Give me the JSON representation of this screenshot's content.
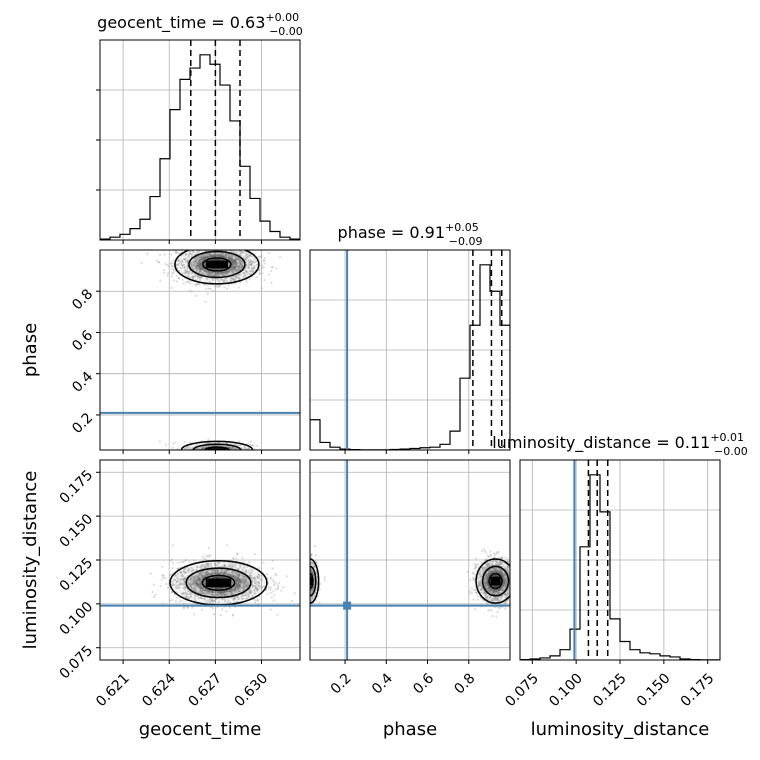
{
  "chart_data": {
    "type": "corner",
    "params": [
      {
        "name": "geocent_time",
        "axis_label": "geocent_time",
        "range": [
          0.6195,
          0.6325
        ],
        "ticks": [
          0.621,
          0.624,
          0.627,
          0.63
        ],
        "tick_labels": [
          "0.621",
          "0.624",
          "0.627",
          "0.630"
        ],
        "title_main": "geocent_time = 0.63",
        "title_sup": "+0.00",
        "title_sub": "−0.00",
        "quantiles": [
          0.6254,
          0.627,
          0.6286
        ],
        "injection": null
      },
      {
        "name": "phase",
        "axis_label": "phase",
        "range": [
          0.03,
          1.0
        ],
        "ticks": [
          0.2,
          0.4,
          0.6,
          0.8
        ],
        "tick_labels": [
          "0.2",
          "0.4",
          "0.6",
          "0.8"
        ],
        "title_main": "phase = 0.91",
        "title_sup": "+0.05",
        "title_sub": "−0.09",
        "quantiles": [
          0.82,
          0.91,
          0.96
        ],
        "injection": 0.21
      },
      {
        "name": "luminosity_distance",
        "axis_label": "luminosity_distance",
        "range": [
          0.068,
          0.182
        ],
        "ticks": [
          0.075,
          0.1,
          0.125,
          0.15,
          0.175
        ],
        "tick_labels": [
          "0.075",
          "0.100",
          "0.125",
          "0.150",
          "0.175"
        ],
        "title_main": "luminosity_distance = 0.11",
        "title_sup": "+0.01",
        "title_sub": "−0.00",
        "quantiles": [
          0.107,
          0.112,
          0.118
        ],
        "injection": 0.099
      }
    ],
    "histograms": {
      "geocent_time": {
        "bins": [
          0.6195,
          0.62015,
          0.6208,
          0.62145,
          0.6221,
          0.62275,
          0.6234,
          0.62405,
          0.6247,
          0.62535,
          0.626,
          0.62665,
          0.6273,
          0.62795,
          0.6286,
          0.62925,
          0.6299,
          0.63055,
          0.6312,
          0.63185,
          0.6325
        ],
        "values": [
          0.5,
          1.5,
          3,
          6,
          11,
          23,
          43,
          69,
          85,
          91,
          98,
          93,
          82,
          63,
          39,
          22,
          10,
          4.5,
          1.5,
          0.5
        ]
      },
      "phase": {
        "bins": [
          0.03,
          0.0785,
          0.127,
          0.1755,
          0.224,
          0.2725,
          0.321,
          0.3695,
          0.418,
          0.4665,
          0.515,
          0.5635,
          0.612,
          0.6605,
          0.709,
          0.7575,
          0.806,
          0.8545,
          0.903,
          0.9515,
          1.0
        ],
        "values": [
          16,
          4,
          1.5,
          0.5,
          0.2,
          0.1,
          0.1,
          0.1,
          0.3,
          0.5,
          0.8,
          1.2,
          1.5,
          3,
          10,
          38,
          66,
          98,
          84,
          66
        ]
      },
      "luminosity_distance": {
        "bins": [
          0.068,
          0.0737,
          0.0794,
          0.0851,
          0.0908,
          0.0965,
          0.1022,
          0.1079,
          0.1136,
          0.1193,
          0.125,
          0.1307,
          0.1364,
          0.1421,
          0.1478,
          0.1535,
          0.1592,
          0.1649,
          0.1706,
          0.1763,
          0.182
        ],
        "values": [
          0.2,
          0.5,
          1,
          2,
          5,
          15,
          55,
          90,
          72,
          20,
          9,
          5,
          3.5,
          3,
          2,
          1.5,
          0.5,
          0.2,
          0.1,
          0.1
        ]
      }
    },
    "scatter_centers": {
      "phase_vs_geocent_time": [
        [
          0.6271,
          0.93
        ],
        [
          0.6271,
          0.03
        ]
      ],
      "luminosity_distance_vs_geocent_time": [
        [
          0.6272,
          0.112
        ]
      ],
      "luminosity_distance_vs_phase": [
        [
          0.93,
          0.113
        ],
        [
          0.03,
          0.113
        ]
      ]
    },
    "grid": true,
    "line_colors": {
      "hist": "#000000",
      "quantile": "#000000",
      "injection": "#4682b4",
      "points": "#9a9a9a"
    }
  }
}
